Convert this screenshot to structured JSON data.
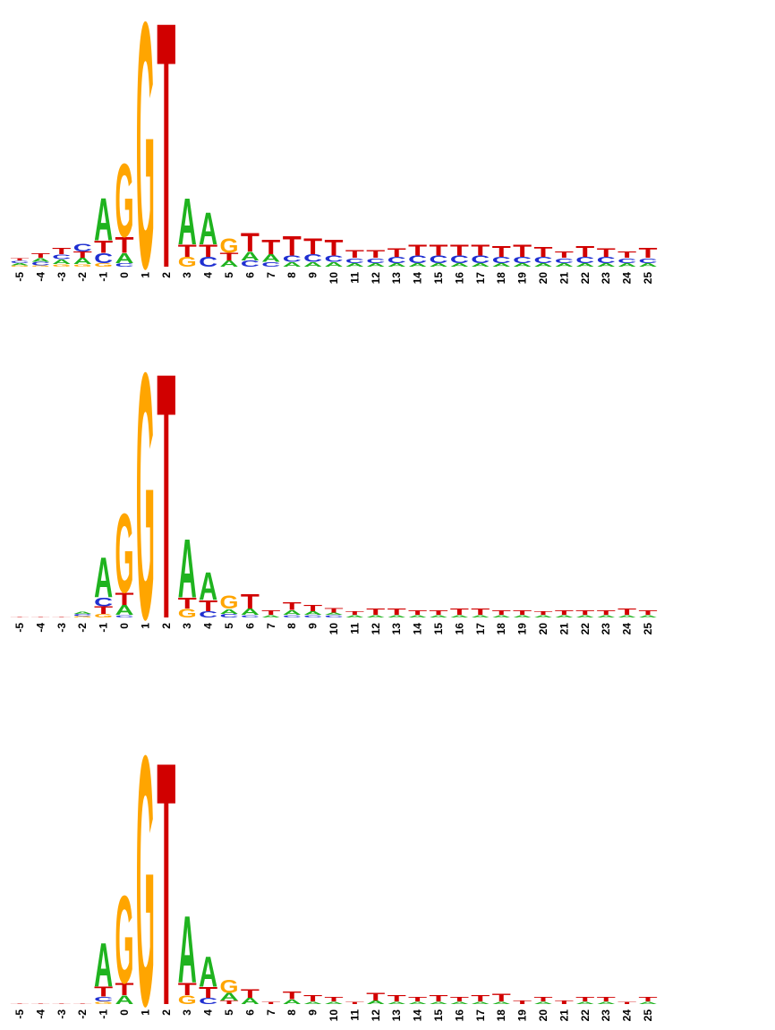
{
  "colors": {
    "A": "#1fb31f",
    "C": "#1f2fd1",
    "G": "#ffa500",
    "T": "#d10000"
  },
  "chart_data": [
    {
      "type": "sequence-logo",
      "positions": [
        "-5",
        "-4",
        "-3",
        "-2",
        "-1",
        "0",
        "1",
        "2",
        "3",
        "4",
        "5",
        "6",
        "7",
        "8",
        "9",
        "10",
        "11",
        "12",
        "13",
        "14",
        "15",
        "16",
        "17",
        "18",
        "19",
        "20",
        "21",
        "22",
        "23",
        "24",
        "25"
      ],
      "ylim": [
        0,
        2.1
      ],
      "stacks": [
        [
          [
            "G",
            0.01
          ],
          [
            "A",
            0.02
          ],
          [
            "C",
            0.02
          ],
          [
            "T",
            0.02
          ]
        ],
        [
          [
            "G",
            0.01
          ],
          [
            "C",
            0.03
          ],
          [
            "A",
            0.03
          ],
          [
            "T",
            0.04
          ]
        ],
        [
          [
            "G",
            0.02
          ],
          [
            "A",
            0.04
          ],
          [
            "C",
            0.04
          ],
          [
            "T",
            0.05
          ]
        ],
        [
          [
            "G",
            0.02
          ],
          [
            "A",
            0.05
          ],
          [
            "T",
            0.05
          ],
          [
            "C",
            0.06
          ]
        ],
        [
          [
            "G",
            0.03
          ],
          [
            "C",
            0.08
          ],
          [
            "T",
            0.1
          ],
          [
            "A",
            0.35
          ]
        ],
        [
          [
            "C",
            0.03
          ],
          [
            "A",
            0.08
          ],
          [
            "T",
            0.13
          ],
          [
            "G",
            0.6
          ]
        ],
        [
          [
            "G",
            2.02
          ]
        ],
        [
          [
            "T",
            2.02
          ]
        ],
        [
          [
            "G",
            0.08
          ],
          [
            "T",
            0.1
          ],
          [
            "A",
            0.38
          ]
        ],
        [
          [
            "C",
            0.08
          ],
          [
            "T",
            0.1
          ],
          [
            "A",
            0.26
          ]
        ],
        [
          [
            "A",
            0.05
          ],
          [
            "T",
            0.06
          ],
          [
            "G",
            0.12
          ]
        ],
        [
          [
            "C",
            0.05
          ],
          [
            "A",
            0.07
          ],
          [
            "T",
            0.15
          ]
        ],
        [
          [
            "C",
            0.04
          ],
          [
            "A",
            0.06
          ],
          [
            "T",
            0.12
          ]
        ],
        [
          [
            "A",
            0.04
          ],
          [
            "C",
            0.05
          ],
          [
            "T",
            0.16
          ]
        ],
        [
          [
            "A",
            0.04
          ],
          [
            "C",
            0.06
          ],
          [
            "T",
            0.13
          ]
        ],
        [
          [
            "A",
            0.04
          ],
          [
            "C",
            0.05
          ],
          [
            "T",
            0.13
          ]
        ],
        [
          [
            "A",
            0.03
          ],
          [
            "C",
            0.04
          ],
          [
            "T",
            0.06
          ]
        ],
        [
          [
            "A",
            0.03
          ],
          [
            "C",
            0.04
          ],
          [
            "T",
            0.06
          ]
        ],
        [
          [
            "A",
            0.03
          ],
          [
            "C",
            0.05
          ],
          [
            "T",
            0.07
          ]
        ],
        [
          [
            "A",
            0.03
          ],
          [
            "C",
            0.06
          ],
          [
            "T",
            0.09
          ]
        ],
        [
          [
            "A",
            0.03
          ],
          [
            "C",
            0.06
          ],
          [
            "T",
            0.09
          ]
        ],
        [
          [
            "A",
            0.03
          ],
          [
            "C",
            0.06
          ],
          [
            "T",
            0.09
          ]
        ],
        [
          [
            "A",
            0.03
          ],
          [
            "C",
            0.06
          ],
          [
            "T",
            0.09
          ]
        ],
        [
          [
            "A",
            0.03
          ],
          [
            "C",
            0.05
          ],
          [
            "T",
            0.09
          ]
        ],
        [
          [
            "A",
            0.03
          ],
          [
            "C",
            0.05
          ],
          [
            "T",
            0.1
          ]
        ],
        [
          [
            "A",
            0.03
          ],
          [
            "C",
            0.05
          ],
          [
            "T",
            0.08
          ]
        ],
        [
          [
            "A",
            0.03
          ],
          [
            "C",
            0.04
          ],
          [
            "T",
            0.05
          ]
        ],
        [
          [
            "A",
            0.03
          ],
          [
            "C",
            0.05
          ],
          [
            "T",
            0.09
          ]
        ],
        [
          [
            "A",
            0.03
          ],
          [
            "C",
            0.05
          ],
          [
            "T",
            0.07
          ]
        ],
        [
          [
            "A",
            0.03
          ],
          [
            "C",
            0.04
          ],
          [
            "T",
            0.05
          ]
        ],
        [
          [
            "A",
            0.03
          ],
          [
            "C",
            0.04
          ],
          [
            "T",
            0.08
          ]
        ]
      ]
    },
    {
      "type": "sequence-logo",
      "positions": [
        "-5",
        "-4",
        "-3",
        "-2",
        "-1",
        "0",
        "1",
        "2",
        "3",
        "4",
        "5",
        "6",
        "7",
        "8",
        "9",
        "10",
        "11",
        "12",
        "13",
        "14",
        "15",
        "16",
        "17",
        "18",
        "19",
        "20",
        "21",
        "22",
        "23",
        "24",
        "25"
      ],
      "ylim": [
        0,
        2.1
      ],
      "stacks": [
        [
          [
            "T",
            0.005
          ]
        ],
        [
          [
            "T",
            0.005
          ]
        ],
        [
          [
            "T",
            0.005
          ]
        ],
        [
          [
            "G",
            0.01
          ],
          [
            "C",
            0.02
          ],
          [
            "A",
            0.02
          ]
        ],
        [
          [
            "G",
            0.03
          ],
          [
            "T",
            0.06
          ],
          [
            "C",
            0.07
          ],
          [
            "A",
            0.33
          ]
        ],
        [
          [
            "C",
            0.02
          ],
          [
            "A",
            0.08
          ],
          [
            "T",
            0.1
          ],
          [
            "G",
            0.65
          ]
        ],
        [
          [
            "G",
            2.02
          ]
        ],
        [
          [
            "T",
            2.02
          ]
        ],
        [
          [
            "G",
            0.07
          ],
          [
            "T",
            0.09
          ],
          [
            "A",
            0.48
          ]
        ],
        [
          [
            "C",
            0.05
          ],
          [
            "T",
            0.09
          ],
          [
            "A",
            0.23
          ]
        ],
        [
          [
            "C",
            0.03
          ],
          [
            "A",
            0.04
          ],
          [
            "G",
            0.11
          ]
        ],
        [
          [
            "C",
            0.02
          ],
          [
            "A",
            0.05
          ],
          [
            "T",
            0.12
          ]
        ],
        [
          [
            "A",
            0.02
          ],
          [
            "T",
            0.04
          ]
        ],
        [
          [
            "C",
            0.02
          ],
          [
            "A",
            0.04
          ],
          [
            "T",
            0.06
          ]
        ],
        [
          [
            "C",
            0.02
          ],
          [
            "A",
            0.03
          ],
          [
            "T",
            0.05
          ]
        ],
        [
          [
            "C",
            0.02
          ],
          [
            "A",
            0.02
          ],
          [
            "T",
            0.04
          ]
        ],
        [
          [
            "A",
            0.02
          ],
          [
            "T",
            0.03
          ]
        ],
        [
          [
            "A",
            0.02
          ],
          [
            "T",
            0.05
          ]
        ],
        [
          [
            "A",
            0.02
          ],
          [
            "T",
            0.05
          ]
        ],
        [
          [
            "A",
            0.02
          ],
          [
            "T",
            0.04
          ]
        ],
        [
          [
            "A",
            0.02
          ],
          [
            "T",
            0.04
          ]
        ],
        [
          [
            "A",
            0.02
          ],
          [
            "T",
            0.05
          ]
        ],
        [
          [
            "A",
            0.02
          ],
          [
            "T",
            0.05
          ]
        ],
        [
          [
            "A",
            0.02
          ],
          [
            "T",
            0.04
          ]
        ],
        [
          [
            "A",
            0.02
          ],
          [
            "T",
            0.04
          ]
        ],
        [
          [
            "A",
            0.02
          ],
          [
            "T",
            0.03
          ]
        ],
        [
          [
            "A",
            0.02
          ],
          [
            "T",
            0.04
          ]
        ],
        [
          [
            "A",
            0.02
          ],
          [
            "T",
            0.04
          ]
        ],
        [
          [
            "A",
            0.02
          ],
          [
            "T",
            0.04
          ]
        ],
        [
          [
            "A",
            0.02
          ],
          [
            "T",
            0.05
          ]
        ],
        [
          [
            "A",
            0.02
          ],
          [
            "T",
            0.04
          ]
        ]
      ]
    },
    {
      "type": "sequence-logo",
      "positions": [
        "-5",
        "-4",
        "-3",
        "-2",
        "-1",
        "0",
        "1",
        "2",
        "3",
        "4",
        "5",
        "6",
        "7",
        "8",
        "9",
        "10",
        "11",
        "12",
        "13",
        "14",
        "15",
        "16",
        "17",
        "18",
        "19",
        "20",
        "21",
        "22",
        "23",
        "24",
        "25"
      ],
      "ylim": [
        0,
        2.1
      ],
      "stacks": [
        [
          [
            "T",
            0.005
          ]
        ],
        [
          [
            "T",
            0.005
          ]
        ],
        [
          [
            "T",
            0.005
          ]
        ],
        [
          [
            "T",
            0.005
          ]
        ],
        [
          [
            "G",
            0.02
          ],
          [
            "C",
            0.04
          ],
          [
            "T",
            0.08
          ],
          [
            "A",
            0.36
          ]
        ],
        [
          [
            "A",
            0.07
          ],
          [
            "T",
            0.1
          ],
          [
            "G",
            0.72
          ]
        ],
        [
          [
            "G",
            2.05
          ]
        ],
        [
          [
            "T",
            2.0
          ]
        ],
        [
          [
            "G",
            0.07
          ],
          [
            "T",
            0.1
          ],
          [
            "A",
            0.55
          ]
        ],
        [
          [
            "C",
            0.05
          ],
          [
            "T",
            0.09
          ],
          [
            "A",
            0.25
          ]
        ],
        [
          [
            "T",
            0.03
          ],
          [
            "A",
            0.06
          ],
          [
            "G",
            0.11
          ]
        ],
        [
          [
            "A",
            0.05
          ],
          [
            "T",
            0.07
          ]
        ],
        [
          [
            "T",
            0.02
          ]
        ],
        [
          [
            "A",
            0.04
          ],
          [
            "T",
            0.06
          ]
        ],
        [
          [
            "A",
            0.02
          ],
          [
            "T",
            0.05
          ]
        ],
        [
          [
            "A",
            0.02
          ],
          [
            "T",
            0.04
          ]
        ],
        [
          [
            "T",
            0.02
          ]
        ],
        [
          [
            "A",
            0.03
          ],
          [
            "T",
            0.06
          ]
        ],
        [
          [
            "A",
            0.02
          ],
          [
            "T",
            0.05
          ]
        ],
        [
          [
            "A",
            0.02
          ],
          [
            "T",
            0.04
          ]
        ],
        [
          [
            "A",
            0.02
          ],
          [
            "T",
            0.05
          ]
        ],
        [
          [
            "A",
            0.02
          ],
          [
            "T",
            0.04
          ]
        ],
        [
          [
            "A",
            0.02
          ],
          [
            "T",
            0.05
          ]
        ],
        [
          [
            "A",
            0.02
          ],
          [
            "T",
            0.06
          ]
        ],
        [
          [
            "T",
            0.03
          ]
        ],
        [
          [
            "A",
            0.02
          ],
          [
            "T",
            0.04
          ]
        ],
        [
          [
            "T",
            0.03
          ]
        ],
        [
          [
            "A",
            0.02
          ],
          [
            "T",
            0.04
          ]
        ],
        [
          [
            "A",
            0.02
          ],
          [
            "T",
            0.04
          ]
        ],
        [
          [
            "T",
            0.02
          ]
        ],
        [
          [
            "A",
            0.02
          ],
          [
            "T",
            0.04
          ]
        ]
      ]
    }
  ]
}
